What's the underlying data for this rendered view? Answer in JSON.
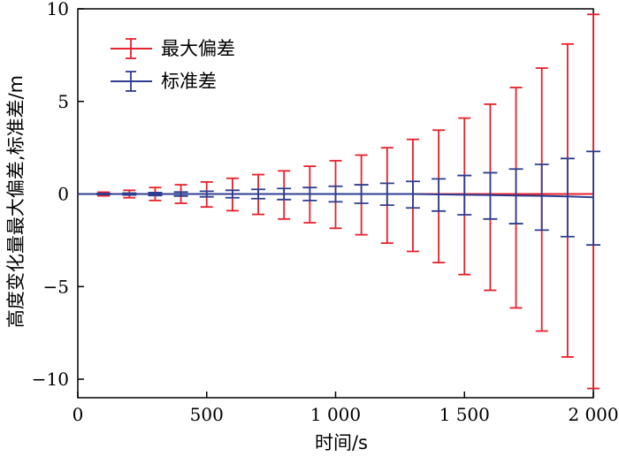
{
  "chart_data": {
    "type": "line",
    "xlabel": "时间/s",
    "ylabel": "高度变化量最大偏差,标准差/m",
    "xlim": [
      0,
      2000
    ],
    "ylim": [
      -11,
      10
    ],
    "x_ticks": [
      0,
      500,
      1000,
      1500,
      2000
    ],
    "x_tick_labels": [
      "0",
      "500",
      "1 000",
      "1 500",
      "2 000"
    ],
    "y_ticks": [
      -10,
      -5,
      0,
      5,
      10
    ],
    "y_tick_labels": [
      "−10",
      "−5",
      "0",
      "5",
      "10"
    ],
    "grid": false,
    "legend_position": "top-left",
    "series": [
      {
        "name": "最大偏差",
        "color": "#e8202a",
        "x": [
          100,
          200,
          300,
          400,
          500,
          600,
          700,
          800,
          900,
          1000,
          1100,
          1200,
          1300,
          1400,
          1500,
          1600,
          1700,
          1800,
          1900,
          2000
        ],
        "y": [
          0,
          0,
          0,
          0,
          0,
          0,
          0,
          0,
          0,
          0,
          0,
          0,
          0,
          0,
          0,
          0,
          0,
          0,
          0,
          0
        ],
        "upper": [
          0.1,
          0.2,
          0.35,
          0.5,
          0.65,
          0.85,
          1.05,
          1.25,
          1.5,
          1.8,
          2.1,
          2.5,
          2.95,
          3.45,
          4.1,
          4.85,
          5.75,
          6.8,
          8.1,
          9.7
        ],
        "lower": [
          -0.1,
          -0.2,
          -0.35,
          -0.5,
          -0.7,
          -0.9,
          -1.1,
          -1.35,
          -1.55,
          -1.85,
          -2.2,
          -2.65,
          -3.1,
          -3.7,
          -4.35,
          -5.2,
          -6.15,
          -7.4,
          -8.8,
          -10.5
        ]
      },
      {
        "name": "标准差",
        "color": "#2e3d8f",
        "x": [
          0,
          100,
          200,
          300,
          400,
          500,
          600,
          700,
          800,
          900,
          1000,
          1100,
          1200,
          1300,
          1400,
          1500,
          1600,
          1700,
          1800,
          1900,
          2000
        ],
        "y": [
          0,
          0,
          0,
          0,
          0,
          0,
          0,
          0,
          0,
          0,
          0,
          0,
          0,
          0,
          -0.02,
          -0.04,
          -0.06,
          -0.08,
          -0.1,
          -0.13,
          -0.18
        ],
        "upper": [
          null,
          0.03,
          0.05,
          0.08,
          0.11,
          0.15,
          0.2,
          0.25,
          0.3,
          0.35,
          0.42,
          0.5,
          0.58,
          0.68,
          0.82,
          1.0,
          1.15,
          1.35,
          1.6,
          1.92,
          2.3
        ],
        "lower": [
          null,
          -0.03,
          -0.05,
          -0.08,
          -0.11,
          -0.15,
          -0.2,
          -0.25,
          -0.3,
          -0.35,
          -0.42,
          -0.5,
          -0.6,
          -0.75,
          -0.92,
          -1.12,
          -1.35,
          -1.6,
          -1.95,
          -2.3,
          -2.75
        ]
      }
    ]
  }
}
